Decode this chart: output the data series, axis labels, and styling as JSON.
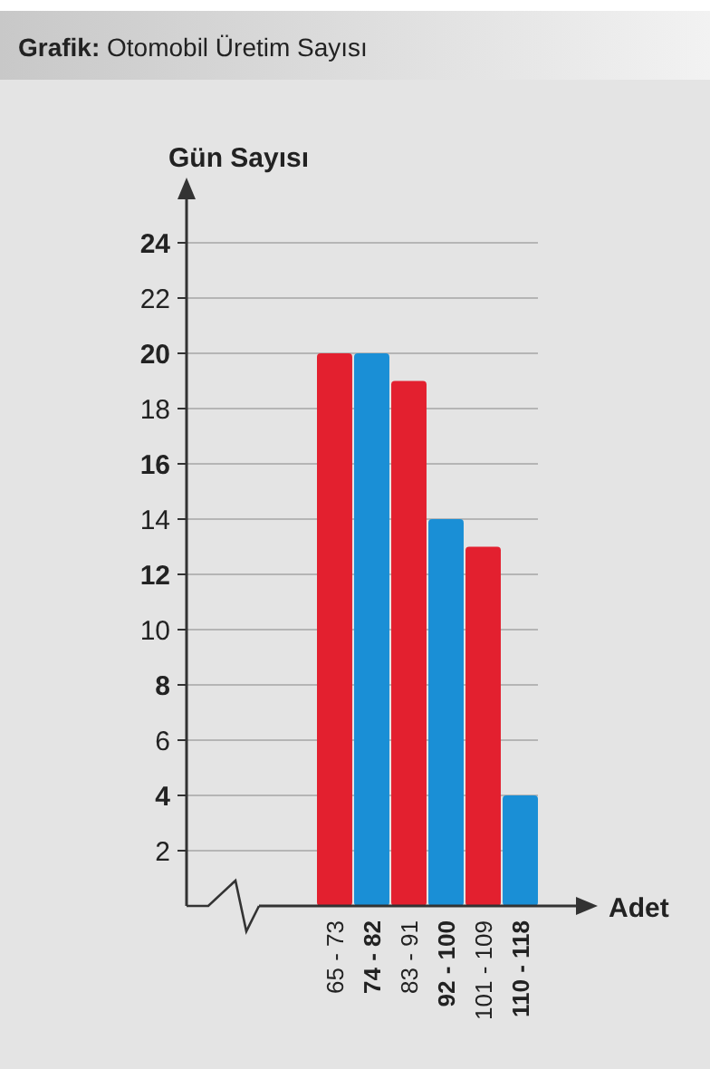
{
  "chart_data": {
    "type": "bar",
    "title": "Grafik: Otomobil Üretim Sayısı",
    "xlabel": "Adet",
    "ylabel": "Gün Sayısı",
    "categories": [
      "65 - 73",
      "74 - 82",
      "83 - 91",
      "92 - 100",
      "101 - 109",
      "110 - 118"
    ],
    "values": [
      20,
      20,
      19,
      14,
      13,
      4
    ],
    "colors": [
      "#e3202f",
      "#1a8fd6",
      "#e3202f",
      "#1a8fd6",
      "#e3202f",
      "#1a8fd6"
    ],
    "ylim": [
      0,
      24
    ],
    "yticks": [
      2,
      4,
      6,
      8,
      10,
      12,
      14,
      16,
      18,
      20,
      22,
      24
    ],
    "grid": "y"
  }
}
